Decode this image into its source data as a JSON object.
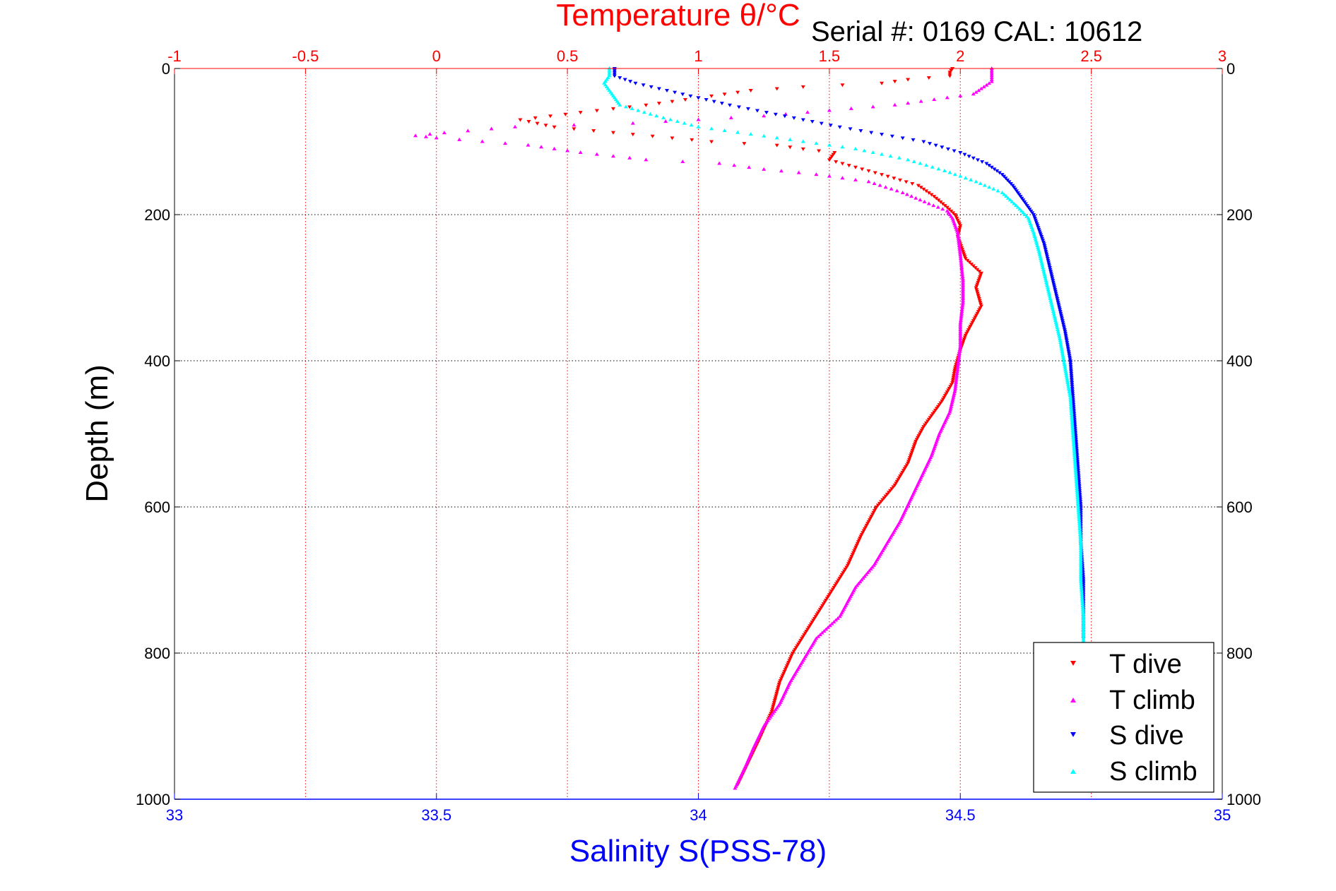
{
  "chart_data": {
    "type": "scatter",
    "title": "Temperature θ/°C",
    "subtitle": "Serial #: 0169 CAL: 10612",
    "ylabel": "Depth (m)",
    "xlabel": "Salinity S(PSS-78)",
    "y_axis": {
      "label": "Depth (m)",
      "range": [
        0,
        1000
      ],
      "reversed": true,
      "ticks": [
        0,
        200,
        400,
        600,
        800,
        1000
      ],
      "tick_labels": [
        "0",
        "200",
        "400",
        "600",
        "800",
        "1000"
      ],
      "right_tick_labels": [
        "0",
        "200",
        "400",
        "600",
        "800",
        "1000"
      ],
      "grid": true
    },
    "x_top": {
      "label": "Temperature θ/°C",
      "range": [
        -1,
        3
      ],
      "ticks": [
        -1,
        -0.5,
        0,
        0.5,
        1,
        1.5,
        2,
        2.5,
        3
      ],
      "tick_labels": [
        "-1",
        "-0.5",
        "0",
        "0.5",
        "1",
        "1.5",
        "2",
        "2.5",
        "3"
      ],
      "color": "#ff0000",
      "grid": true
    },
    "x_bottom": {
      "label": "Salinity S(PSS-78)",
      "range": [
        33,
        35
      ],
      "ticks": [
        33,
        33.5,
        34,
        34.5,
        35
      ],
      "tick_labels": [
        "33",
        "33.5",
        "34",
        "34.5",
        "35"
      ],
      "color": "#0000ff"
    },
    "legend": {
      "position": "bottom-right",
      "entries": [
        "T dive",
        "T climb",
        "S dive",
        "S climb"
      ]
    },
    "series": [
      {
        "name": "T dive",
        "axis": "top",
        "color": "#ff0000",
        "marker": "triangle-down",
        "points": [
          [
            1.97,
            0
          ],
          [
            1.96,
            5
          ],
          [
            1.96,
            10
          ],
          [
            1.8,
            15
          ],
          [
            1.7,
            20
          ],
          [
            1.4,
            25
          ],
          [
            1.2,
            30
          ],
          [
            1.0,
            40
          ],
          [
            0.8,
            50
          ],
          [
            0.55,
            60
          ],
          [
            0.32,
            70
          ],
          [
            0.45,
            80
          ],
          [
            0.75,
            90
          ],
          [
            1.05,
            100
          ],
          [
            1.3,
            105
          ],
          [
            1.4,
            110
          ],
          [
            1.52,
            115
          ],
          [
            1.5,
            125
          ],
          [
            1.6,
            135
          ],
          [
            1.7,
            145
          ],
          [
            1.84,
            160
          ],
          [
            1.9,
            175
          ],
          [
            1.95,
            190
          ],
          [
            1.98,
            200
          ],
          [
            2.0,
            215
          ],
          [
            1.99,
            230
          ],
          [
            2.02,
            260
          ],
          [
            2.08,
            280
          ],
          [
            2.06,
            300
          ],
          [
            2.08,
            325
          ],
          [
            2.05,
            345
          ],
          [
            2.02,
            365
          ],
          [
            2.0,
            385
          ],
          [
            1.98,
            410
          ],
          [
            1.97,
            430
          ],
          [
            1.93,
            455
          ],
          [
            1.9,
            470
          ],
          [
            1.86,
            490
          ],
          [
            1.83,
            510
          ],
          [
            1.8,
            540
          ],
          [
            1.75,
            570
          ],
          [
            1.68,
            600
          ],
          [
            1.62,
            640
          ],
          [
            1.57,
            680
          ],
          [
            1.5,
            720
          ],
          [
            1.43,
            760
          ],
          [
            1.36,
            800
          ],
          [
            1.31,
            840
          ],
          [
            1.28,
            880
          ],
          [
            1.23,
            920
          ],
          [
            1.19,
            950
          ],
          [
            1.15,
            980
          ]
        ]
      },
      {
        "name": "T climb",
        "axis": "top",
        "color": "#ff00ff",
        "marker": "triangle-up",
        "points": [
          [
            2.12,
            0
          ],
          [
            2.12,
            10
          ],
          [
            2.12,
            18
          ],
          [
            2.05,
            35
          ],
          [
            1.75,
            50
          ],
          [
            1.25,
            65
          ],
          [
            0.75,
            75
          ],
          [
            0.3,
            80
          ],
          [
            0.03,
            88
          ],
          [
            -0.08,
            92
          ],
          [
            0.0,
            95
          ],
          [
            0.35,
            105
          ],
          [
            0.55,
            115
          ],
          [
            0.8,
            125
          ],
          [
            1.08,
            130
          ],
          [
            1.25,
            138
          ],
          [
            1.45,
            145
          ],
          [
            1.65,
            155
          ],
          [
            1.78,
            170
          ],
          [
            1.88,
            185
          ],
          [
            1.95,
            195
          ],
          [
            1.97,
            205
          ],
          [
            1.99,
            225
          ],
          [
            2.0,
            255
          ],
          [
            2.01,
            290
          ],
          [
            2.01,
            320
          ],
          [
            2.0,
            350
          ],
          [
            2.0,
            380
          ],
          [
            1.99,
            410
          ],
          [
            1.98,
            440
          ],
          [
            1.96,
            470
          ],
          [
            1.92,
            500
          ],
          [
            1.89,
            530
          ],
          [
            1.85,
            560
          ],
          [
            1.81,
            590
          ],
          [
            1.77,
            620
          ],
          [
            1.72,
            650
          ],
          [
            1.67,
            680
          ],
          [
            1.6,
            710
          ],
          [
            1.54,
            750
          ],
          [
            1.45,
            780
          ],
          [
            1.4,
            810
          ],
          [
            1.35,
            840
          ],
          [
            1.31,
            870
          ],
          [
            1.25,
            900
          ],
          [
            1.21,
            930
          ],
          [
            1.18,
            955
          ],
          [
            1.14,
            985
          ]
        ]
      },
      {
        "name": "S dive",
        "axis": "bottom",
        "color": "#0000ff",
        "marker": "triangle-down",
        "points": [
          [
            33.84,
            0
          ],
          [
            33.84,
            10
          ],
          [
            33.88,
            20
          ],
          [
            33.94,
            30
          ],
          [
            34.0,
            40
          ],
          [
            34.06,
            50
          ],
          [
            34.13,
            60
          ],
          [
            34.2,
            70
          ],
          [
            34.27,
            80
          ],
          [
            34.35,
            90
          ],
          [
            34.43,
            100
          ],
          [
            34.5,
            115
          ],
          [
            34.55,
            130
          ],
          [
            34.58,
            145
          ],
          [
            34.6,
            160
          ],
          [
            34.62,
            180
          ],
          [
            34.64,
            200
          ],
          [
            34.65,
            220
          ],
          [
            34.66,
            240
          ],
          [
            34.67,
            270
          ],
          [
            34.68,
            300
          ],
          [
            34.69,
            330
          ],
          [
            34.7,
            360
          ],
          [
            34.71,
            400
          ],
          [
            34.715,
            450
          ],
          [
            34.72,
            500
          ],
          [
            34.725,
            550
          ],
          [
            34.73,
            600
          ],
          [
            34.73,
            650
          ],
          [
            34.735,
            700
          ],
          [
            34.735,
            750
          ],
          [
            34.735,
            780
          ]
        ]
      },
      {
        "name": "S climb",
        "axis": "bottom",
        "color": "#00ffff",
        "marker": "triangle-up",
        "points": [
          [
            33.83,
            0
          ],
          [
            33.83,
            10
          ],
          [
            33.82,
            20
          ],
          [
            33.83,
            30
          ],
          [
            33.84,
            40
          ],
          [
            33.85,
            50
          ],
          [
            33.92,
            65
          ],
          [
            34.0,
            80
          ],
          [
            34.1,
            90
          ],
          [
            34.2,
            100
          ],
          [
            34.3,
            110
          ],
          [
            34.4,
            125
          ],
          [
            34.47,
            140
          ],
          [
            34.53,
            155
          ],
          [
            34.58,
            170
          ],
          [
            34.61,
            190
          ],
          [
            34.63,
            205
          ],
          [
            34.64,
            225
          ],
          [
            34.65,
            250
          ],
          [
            34.66,
            280
          ],
          [
            34.67,
            310
          ],
          [
            34.68,
            340
          ],
          [
            34.69,
            370
          ],
          [
            34.7,
            410
          ],
          [
            34.71,
            450
          ],
          [
            34.715,
            500
          ],
          [
            34.72,
            550
          ],
          [
            34.725,
            600
          ],
          [
            34.73,
            650
          ],
          [
            34.73,
            700
          ],
          [
            34.735,
            750
          ],
          [
            34.735,
            790
          ]
        ]
      }
    ]
  }
}
